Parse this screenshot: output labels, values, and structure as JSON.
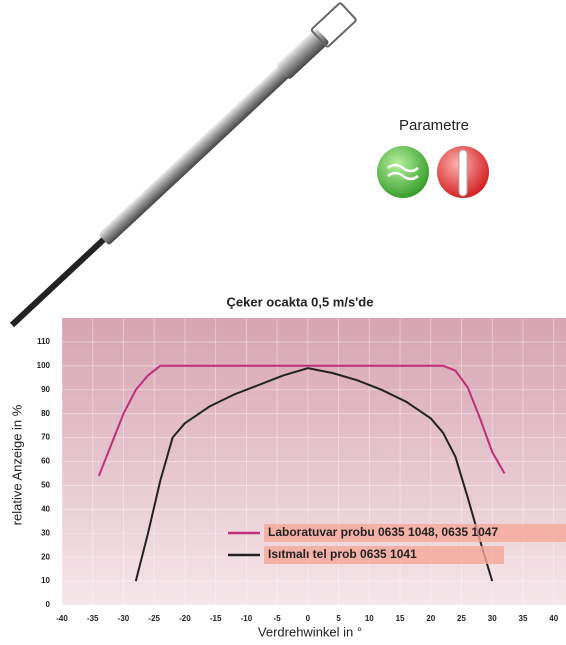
{
  "header": {
    "label": "Parametre"
  },
  "chart_data": {
    "type": "line",
    "title": "Çeker ocakta 0,5 m/s'de",
    "x_label": "Verdrehwinkel in °",
    "y_label": "relative Anzeige in %",
    "xlim": [
      -40,
      42
    ],
    "xticks": [
      -40,
      -35,
      -30,
      -25,
      -20,
      -15,
      -10,
      -5,
      0,
      5,
      10,
      15,
      20,
      25,
      30,
      35,
      40
    ],
    "ylim": [
      0,
      120
    ],
    "yticks": [
      0,
      10,
      20,
      30,
      40,
      50,
      60,
      70,
      80,
      90,
      100,
      110
    ],
    "grid": true,
    "legend": "lower right",
    "series": [
      {
        "name": "Laboratuvar probu 0635 1048, 0635 1047",
        "color": "#c0307a",
        "x": [
          -34,
          -32,
          -30,
          -28,
          -26,
          -24,
          0,
          22,
          24,
          26,
          28,
          30,
          32
        ],
        "values": [
          54,
          67,
          80,
          90,
          96,
          100,
          100,
          100,
          98,
          91,
          78,
          64,
          55
        ]
      },
      {
        "name": "Isıtmalı tel prob 0635 1041",
        "color": "#222222",
        "x": [
          -28,
          -26,
          -24,
          -22,
          -20,
          -16,
          -12,
          -8,
          -4,
          0,
          4,
          8,
          12,
          16,
          20,
          22,
          24,
          26,
          28,
          30
        ],
        "values": [
          10,
          30,
          52,
          70,
          76,
          83,
          88,
          92,
          96,
          99,
          97,
          94,
          90,
          85,
          78,
          72,
          62,
          45,
          27,
          10
        ]
      }
    ]
  }
}
